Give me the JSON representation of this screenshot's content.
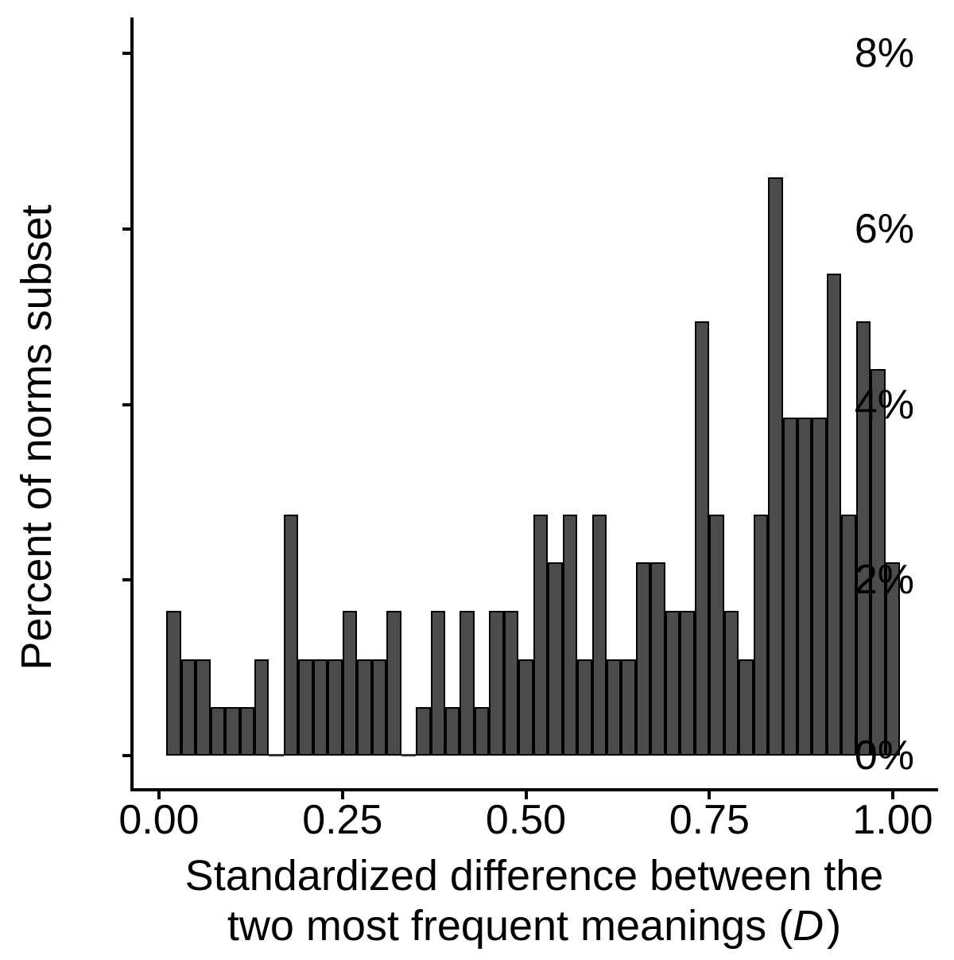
{
  "chart_data": {
    "type": "bar",
    "subtype": "histogram",
    "title": "",
    "x_axis": {
      "title_line1": "Standardized difference between the",
      "title_line2_pre": "two most frequent meanings (",
      "title_line2_italic": "D",
      "title_line2_post": ")",
      "ticks": [
        {
          "value": 0.0,
          "label": "0.00"
        },
        {
          "value": 0.25,
          "label": "0.25"
        },
        {
          "value": 0.5,
          "label": "0.50"
        },
        {
          "value": 0.75,
          "label": "0.75"
        },
        {
          "value": 1.0,
          "label": "1.00"
        }
      ],
      "range_shown": [
        -0.04,
        1.06
      ]
    },
    "y_axis": {
      "title": "Percent of norms subset",
      "ticks": [
        {
          "value": 0,
          "label": "0%"
        },
        {
          "value": 2,
          "label": "2%"
        },
        {
          "value": 4,
          "label": "4%"
        },
        {
          "value": 6,
          "label": "6%"
        },
        {
          "value": 8,
          "label": "8%"
        }
      ],
      "range_shown": [
        0,
        8.4
      ]
    },
    "bins": {
      "bin_width": 0.02,
      "centers": [
        0.02,
        0.04,
        0.06,
        0.08,
        0.1,
        0.12,
        0.14,
        0.16,
        0.18,
        0.2,
        0.22,
        0.24,
        0.26,
        0.28,
        0.3,
        0.32,
        0.34,
        0.36,
        0.38,
        0.4,
        0.42,
        0.44,
        0.46,
        0.48,
        0.5,
        0.52,
        0.54,
        0.56,
        0.58,
        0.6,
        0.62,
        0.64,
        0.66,
        0.68,
        0.7,
        0.72,
        0.74,
        0.76,
        0.78,
        0.8,
        0.82,
        0.84,
        0.86,
        0.88,
        0.9,
        0.92,
        0.94,
        0.96,
        0.98,
        1.0
      ],
      "percent": [
        1.65,
        1.1,
        1.1,
        0.55,
        0.55,
        0.55,
        1.1,
        0,
        2.75,
        1.1,
        1.1,
        1.1,
        1.65,
        1.1,
        1.1,
        1.65,
        0,
        0.55,
        1.65,
        0.55,
        1.65,
        0.55,
        1.65,
        1.65,
        1.1,
        2.75,
        2.2,
        2.75,
        1.1,
        2.75,
        1.1,
        1.1,
        2.2,
        2.2,
        1.65,
        1.65,
        4.95,
        2.75,
        1.65,
        1.1,
        2.75,
        6.59,
        3.85,
        3.85,
        3.85,
        5.49,
        2.75,
        4.95,
        4.4,
        2.2
      ]
    },
    "legend": "none",
    "grid": false
  },
  "colors": {
    "bar_fill": "#4b4b4b",
    "bar_stroke": "#000000",
    "axis": "#000000",
    "background": "#ffffff",
    "text": "#000000"
  }
}
